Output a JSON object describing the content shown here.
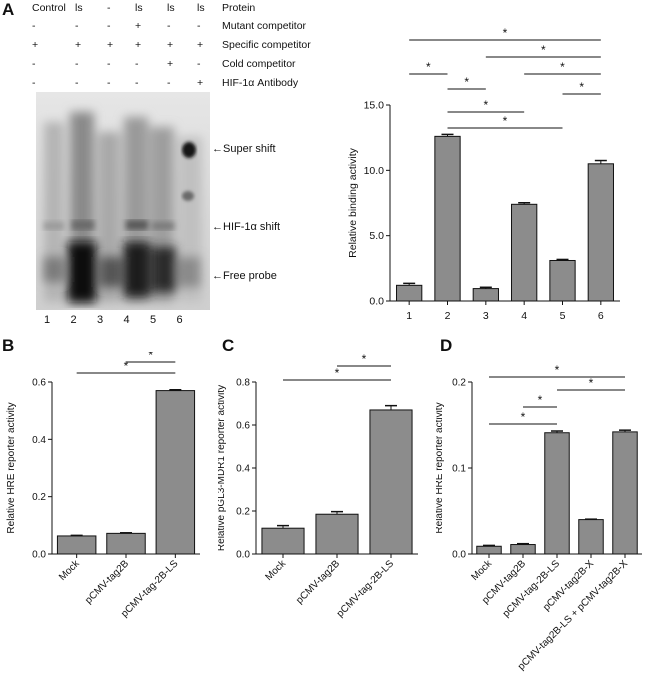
{
  "panel_letters": {
    "A": "A",
    "B": "B",
    "C": "C",
    "D": "D"
  },
  "emsa": {
    "lane_headers": [
      "Control",
      "ls",
      "-",
      "ls",
      "ls",
      "ls"
    ],
    "rows": [
      {
        "label": "Protein",
        "cells": [
          "Control",
          "ls",
          "-",
          "ls",
          "ls",
          "ls"
        ]
      },
      {
        "label": "Mutant competitor",
        "cells": [
          "-",
          "-",
          "-",
          "+",
          "-",
          "-"
        ]
      },
      {
        "label": "Specific competitor",
        "cells": [
          "+",
          "+",
          "+",
          "+",
          "+",
          "+"
        ]
      },
      {
        "label": "Cold competitor",
        "cells": [
          "-",
          "-",
          "-",
          "-",
          "+",
          "-"
        ]
      },
      {
        "label": "HIF-1α Antibody",
        "cells": [
          "-",
          "-",
          "-",
          "-",
          "-",
          "+"
        ]
      }
    ],
    "lane_numbers": [
      "1",
      "2",
      "3",
      "4",
      "5",
      "6"
    ],
    "band_labels": {
      "super_shift": "Super shift",
      "hif_shift": "HIF-1α shift",
      "free_probe": "Free probe"
    }
  },
  "chart_data": [
    {
      "id": "A",
      "type": "bar",
      "categories": [
        "1",
        "2",
        "3",
        "4",
        "5",
        "6"
      ],
      "values": [
        1.2,
        12.6,
        0.95,
        7.4,
        3.1,
        10.5
      ],
      "errors": [
        0.15,
        0.15,
        0.1,
        0.12,
        0.08,
        0.25
      ],
      "ylabel": "Relative binding activity",
      "ylim": [
        0,
        15
      ],
      "yticks": [
        0,
        5,
        10,
        15
      ],
      "ytick_labels": [
        "0.0",
        "5.0",
        "10.0",
        "15.0"
      ],
      "significance": [
        [
          0,
          1
        ],
        [
          1,
          2
        ],
        [
          1,
          3
        ],
        [
          1,
          4
        ],
        [
          0,
          5
        ],
        [
          2,
          5
        ],
        [
          3,
          5
        ],
        [
          4,
          5
        ]
      ],
      "sig_mark": "*"
    },
    {
      "id": "B",
      "type": "bar",
      "categories": [
        "Mock",
        "pCMV-tag2B",
        "pCMV-tag-2B-LS"
      ],
      "values": [
        0.063,
        0.072,
        0.57
      ],
      "errors": [
        0.002,
        0.002,
        0.003
      ],
      "ylabel": "Relative HRE reporter activity",
      "ylim": [
        0,
        0.6
      ],
      "yticks": [
        0,
        0.2,
        0.4,
        0.6
      ],
      "ytick_labels": [
        "0.0",
        "0.2",
        "0.4",
        "0.6"
      ],
      "significance": [
        [
          0,
          2
        ],
        [
          1,
          2
        ]
      ],
      "sig_mark": "*"
    },
    {
      "id": "C",
      "type": "bar",
      "categories": [
        "Mock",
        "pCMV-tag2B",
        "pCMV-tag-2B-LS"
      ],
      "values": [
        0.12,
        0.185,
        0.67
      ],
      "errors": [
        0.012,
        0.012,
        0.02
      ],
      "ylabel": "Relative pGL3-MDR1 reporter activity",
      "ylim": [
        0,
        0.8
      ],
      "yticks": [
        0,
        0.2,
        0.4,
        0.6,
        0.8
      ],
      "ytick_labels": [
        "0.0",
        "0.2",
        "0.4",
        "0.6",
        "0.8"
      ],
      "significance": [
        [
          0,
          2
        ],
        [
          1,
          2
        ]
      ],
      "sig_mark": "*"
    },
    {
      "id": "D",
      "type": "bar",
      "categories": [
        "Mock",
        "pCMV-tag2B",
        "pCMV-tag-2B-LS",
        "pCMV-tag2B-X",
        "pCMV-tag2B-LS + pCMV-tag2B-X"
      ],
      "values": [
        0.009,
        0.011,
        0.141,
        0.04,
        0.142
      ],
      "errors": [
        0.001,
        0.001,
        0.002,
        0.0005,
        0.002
      ],
      "ylabel": "Relative HRE reporter activity",
      "ylim": [
        0,
        0.2
      ],
      "yticks": [
        0,
        0.1,
        0.2
      ],
      "ytick_labels": [
        "0.0",
        "0.1",
        "0.2"
      ],
      "significance": [
        [
          0,
          2
        ],
        [
          1,
          2
        ],
        [
          0,
          4
        ],
        [
          2,
          4
        ]
      ],
      "sig_mark": "*"
    }
  ],
  "colors": {
    "bar": "#8c8c8c",
    "axis": "#111111",
    "gel_bg": "#dcdcdc"
  }
}
